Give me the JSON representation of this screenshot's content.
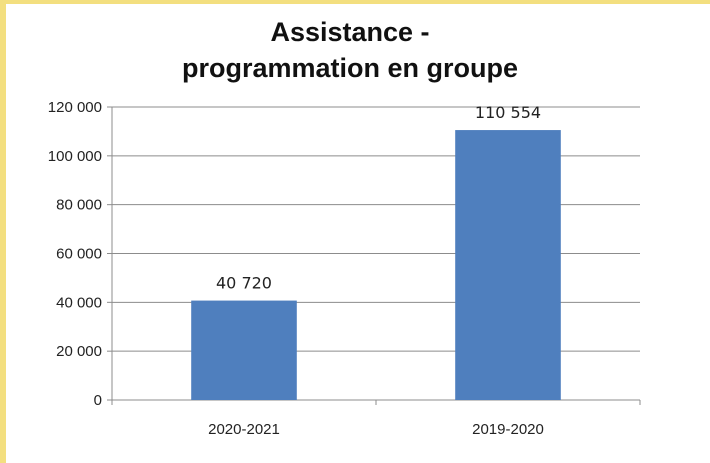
{
  "chart_data": {
    "type": "bar",
    "title_lines": [
      "Assistance -",
      "programmation en groupe"
    ],
    "categories": [
      "2020-2021",
      "2019-2020"
    ],
    "values": [
      40720,
      110554
    ],
    "data_labels": [
      "40 720",
      "110 554"
    ],
    "y_ticks": [
      "0",
      "20 000",
      "40 000",
      "60 000",
      "80 000",
      "100 000",
      "120 000"
    ],
    "ylim": [
      0,
      120000
    ],
    "grid": true,
    "legend": "none",
    "bar_color": "#4f7fbe",
    "xlabel": "",
    "ylabel": ""
  }
}
